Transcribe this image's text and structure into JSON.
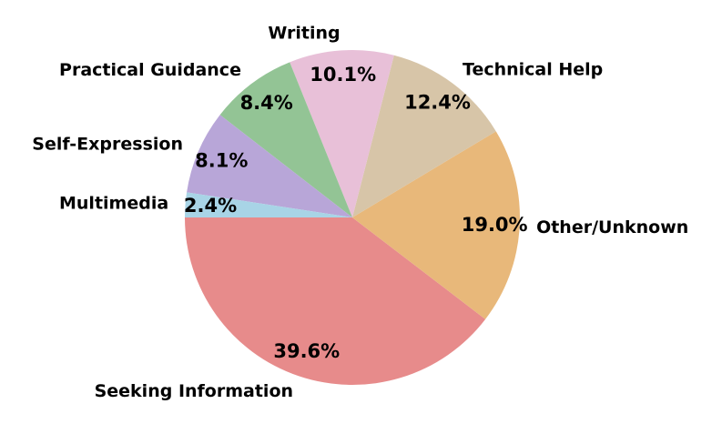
{
  "chart_data": {
    "type": "pie",
    "categories": [
      "Seeking Information",
      "Other/Unknown",
      "Technical Help",
      "Writing",
      "Practical Guidance",
      "Self-Expression",
      "Multimedia"
    ],
    "values": [
      39.6,
      19.0,
      12.4,
      10.1,
      8.4,
      8.1,
      2.4
    ],
    "value_labels": [
      "39.6%",
      "19.0%",
      "12.4%",
      "10.1%",
      "8.4%",
      "8.1%",
      "2.4%"
    ],
    "colors": [
      "#e78b8b",
      "#e8b87a",
      "#d7c5a8",
      "#e8c0d8",
      "#93c495",
      "#b8a6d8",
      "#a8d4e6"
    ]
  }
}
